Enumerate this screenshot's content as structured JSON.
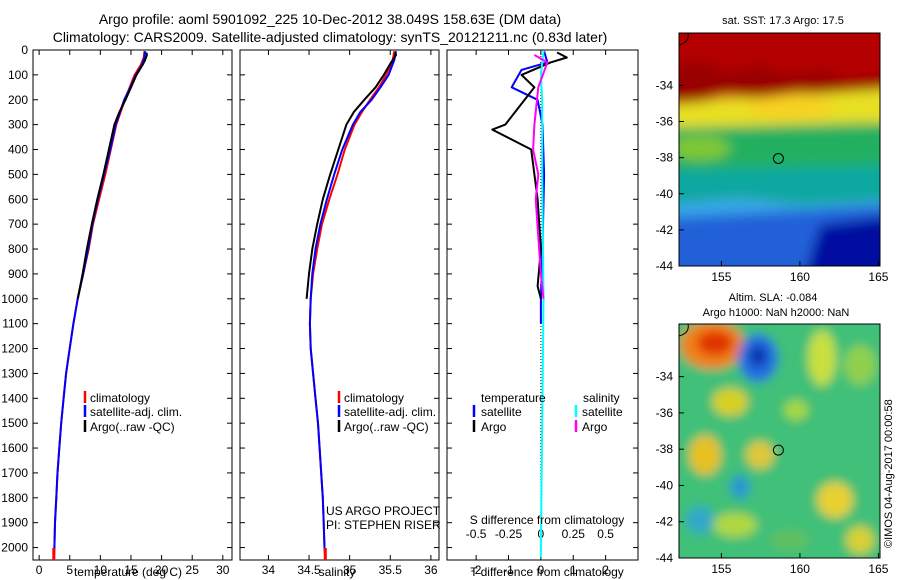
{
  "titles": {
    "line1": "Argo profile: aoml 5901092_225 10-Dec-2012 38.049S 158.63E (DM data)",
    "line2": "Climatology: CARS2009. Satellite-adjusted climatology: synTS_20121211.nc (0.83d later)"
  },
  "colors": {
    "climatology": "#ff0000",
    "satellite": "#0000ff",
    "argo": "#000000",
    "salinity_satellite": "#00ffff",
    "salinity_argo": "#ff00ff"
  },
  "credit": {
    "project": "US ARGO PROJECT",
    "pi": "PI: STEPHEN RISER"
  },
  "watermark": "©IMOS 04-Aug-2017 00:00:58",
  "chart_data": [
    {
      "type": "line",
      "id": "temperature",
      "xlabel": "temperature (deg C)",
      "ylabel": "",
      "xlim": [
        -1,
        31.5
      ],
      "ylim": [
        2050,
        0
      ],
      "xticks": [
        0,
        5,
        10,
        15,
        20,
        25,
        30
      ],
      "yticks": [
        0,
        100,
        200,
        300,
        400,
        500,
        600,
        700,
        800,
        900,
        1000,
        1100,
        1200,
        1300,
        1400,
        1500,
        1600,
        1700,
        1800,
        1900,
        2000
      ],
      "legend": [
        "climatology",
        "satellite-adj. clim.",
        "Argo(..raw -QC)"
      ],
      "series": [
        {
          "name": "climatology",
          "color": "#ff0000",
          "points": [
            [
              17.2,
              5
            ],
            [
              17.1,
              30
            ],
            [
              16.6,
              60
            ],
            [
              15.6,
              100
            ],
            [
              14.8,
              150
            ],
            [
              14.0,
              200
            ],
            [
              13.3,
              250
            ],
            [
              12.6,
              300
            ],
            [
              11.7,
              400
            ],
            [
              10.8,
              500
            ],
            [
              9.8,
              600
            ],
            [
              8.8,
              700
            ],
            [
              8.1,
              800
            ],
            [
              7.2,
              900
            ],
            [
              6.3,
              1000
            ],
            [
              5.6,
              1100
            ],
            [
              5.0,
              1200
            ],
            [
              4.4,
              1300
            ],
            [
              4.0,
              1400
            ],
            [
              3.6,
              1500
            ],
            [
              3.3,
              1600
            ],
            [
              3.0,
              1700
            ],
            [
              2.8,
              1800
            ],
            [
              2.6,
              1900
            ],
            [
              2.5,
              2000
            ],
            [
              2.4,
              2050
            ]
          ]
        },
        {
          "name": "satellite-adj. clim.",
          "color": "#0000ff",
          "points": [
            [
              17.3,
              5
            ],
            [
              17.2,
              30
            ],
            [
              16.8,
              60
            ],
            [
              15.8,
              100
            ],
            [
              14.9,
              150
            ],
            [
              13.9,
              200
            ],
            [
              13.2,
              250
            ],
            [
              12.5,
              300
            ],
            [
              11.6,
              400
            ],
            [
              10.6,
              500
            ],
            [
              9.6,
              600
            ],
            [
              8.7,
              700
            ],
            [
              8.0,
              800
            ],
            [
              7.2,
              900
            ],
            [
              6.3,
              1000
            ],
            [
              5.6,
              1100
            ],
            [
              5.0,
              1200
            ],
            [
              4.4,
              1300
            ],
            [
              4.0,
              1400
            ],
            [
              3.6,
              1500
            ],
            [
              3.3,
              1600
            ],
            [
              3.0,
              1700
            ],
            [
              2.8,
              1800
            ],
            [
              2.6,
              1900
            ],
            [
              2.5,
              2000
            ],
            [
              2.4,
              2040
            ]
          ]
        },
        {
          "name": "Argo(..raw -QC)",
          "color": "#000000",
          "points": [
            [
              17.5,
              10
            ],
            [
              17.6,
              20
            ],
            [
              17.3,
              40
            ],
            [
              16.9,
              60
            ],
            [
              15.9,
              100
            ],
            [
              15.0,
              150
            ],
            [
              14.1,
              200
            ],
            [
              13.1,
              250
            ],
            [
              12.3,
              300
            ],
            [
              11.4,
              400
            ],
            [
              10.5,
              500
            ],
            [
              9.5,
              600
            ],
            [
              8.6,
              700
            ],
            [
              7.8,
              800
            ],
            [
              7.1,
              900
            ],
            [
              6.3,
              1000
            ]
          ]
        }
      ]
    },
    {
      "type": "line",
      "id": "salinity",
      "xlabel": "salinity",
      "ylabel": "",
      "xlim": [
        33.65,
        36.1
      ],
      "ylim": [
        2050,
        0
      ],
      "xticks": [
        34,
        34.5,
        35,
        35.5,
        36
      ],
      "legend": [
        "climatology",
        "satellite-adj. clim.",
        "Argo(..raw -QC)"
      ],
      "series": [
        {
          "name": "climatology",
          "color": "#ff0000",
          "points": [
            [
              35.55,
              5
            ],
            [
              35.53,
              40
            ],
            [
              35.45,
              100
            ],
            [
              35.36,
              150
            ],
            [
              35.25,
              200
            ],
            [
              35.15,
              250
            ],
            [
              35.06,
              300
            ],
            [
              34.94,
              400
            ],
            [
              34.85,
              500
            ],
            [
              34.75,
              600
            ],
            [
              34.66,
              700
            ],
            [
              34.6,
              800
            ],
            [
              34.55,
              900
            ],
            [
              34.52,
              1000
            ],
            [
              34.51,
              1100
            ],
            [
              34.52,
              1200
            ],
            [
              34.55,
              1300
            ],
            [
              34.58,
              1400
            ],
            [
              34.61,
              1500
            ],
            [
              34.63,
              1600
            ],
            [
              34.65,
              1700
            ],
            [
              34.67,
              1800
            ],
            [
              34.68,
              1900
            ],
            [
              34.69,
              2000
            ],
            [
              34.7,
              2050
            ]
          ]
        },
        {
          "name": "satellite-adj. clim.",
          "color": "#0000ff",
          "points": [
            [
              35.57,
              5
            ],
            [
              35.55,
              40
            ],
            [
              35.48,
              100
            ],
            [
              35.38,
              150
            ],
            [
              35.27,
              200
            ],
            [
              35.13,
              250
            ],
            [
              35.04,
              300
            ],
            [
              34.91,
              400
            ],
            [
              34.81,
              500
            ],
            [
              34.72,
              600
            ],
            [
              34.64,
              700
            ],
            [
              34.58,
              800
            ],
            [
              34.54,
              900
            ],
            [
              34.52,
              1000
            ],
            [
              34.51,
              1100
            ],
            [
              34.52,
              1200
            ],
            [
              34.55,
              1300
            ],
            [
              34.58,
              1400
            ],
            [
              34.61,
              1500
            ],
            [
              34.63,
              1600
            ],
            [
              34.65,
              1700
            ],
            [
              34.67,
              1800
            ],
            [
              34.68,
              1900
            ],
            [
              34.69,
              2000
            ],
            [
              34.7,
              2040
            ]
          ]
        },
        {
          "name": "Argo(..raw -QC)",
          "color": "#000000",
          "points": [
            [
              35.56,
              10
            ],
            [
              35.57,
              20
            ],
            [
              35.51,
              50
            ],
            [
              35.42,
              100
            ],
            [
              35.32,
              150
            ],
            [
              35.18,
              200
            ],
            [
              35.05,
              250
            ],
            [
              34.96,
              300
            ],
            [
              34.86,
              400
            ],
            [
              34.76,
              500
            ],
            [
              34.67,
              600
            ],
            [
              34.6,
              700
            ],
            [
              34.54,
              800
            ],
            [
              34.5,
              900
            ],
            [
              34.47,
              1000
            ]
          ]
        }
      ]
    },
    {
      "type": "line",
      "id": "differences",
      "xlabel": "T difference from climatology",
      "xlabel_top": "S difference from climatology",
      "xlim": [
        -2.9,
        3.0
      ],
      "ylim": [
        2050,
        0
      ],
      "xticks": [
        -2,
        -1,
        0,
        1,
        2
      ],
      "xticks_top": [
        "-0.5",
        "-0.25",
        "0",
        "0.25",
        "0.5"
      ],
      "legend": {
        "temperature_title": "temperature",
        "salinity_title": "salinity",
        "entries": [
          "satellite",
          "Argo",
          "satellite",
          "Argo"
        ]
      },
      "series": [
        {
          "name": "satellite",
          "quantity": "temperature",
          "color": "#0000ff",
          "points": [
            [
              0.1,
              5
            ],
            [
              0.2,
              50
            ],
            [
              -0.6,
              80
            ],
            [
              -0.9,
              150
            ],
            [
              -0.1,
              200
            ],
            [
              0.05,
              300
            ],
            [
              0.1,
              500
            ],
            [
              0.05,
              800
            ],
            [
              0.0,
              1000
            ],
            [
              0.0,
              1100
            ]
          ]
        },
        {
          "name": "Argo",
          "quantity": "temperature",
          "color": "#000000",
          "points": [
            [
              0.5,
              10
            ],
            [
              0.8,
              30
            ],
            [
              0.3,
              50
            ],
            [
              -0.6,
              100
            ],
            [
              -0.2,
              150
            ],
            [
              -1.1,
              300
            ],
            [
              -1.5,
              320
            ],
            [
              -0.3,
              400
            ],
            [
              -0.1,
              600
            ],
            [
              0.0,
              800
            ],
            [
              -0.1,
              950
            ],
            [
              0.0,
              1000
            ]
          ]
        },
        {
          "name": "satellite",
          "quantity": "salinity",
          "color": "#00ffff",
          "points": [
            [
              0.02,
              5
            ],
            [
              0.0,
              100
            ],
            [
              0.01,
              200
            ],
            [
              0.01,
              500
            ],
            [
              0.02,
              1000
            ],
            [
              0.01,
              1500
            ],
            [
              0.0,
              2000
            ],
            [
              0.0,
              2040
            ]
          ]
        },
        {
          "name": "Argo",
          "quantity": "salinity",
          "color": "#ff00ff",
          "points": [
            [
              -0.05,
              20
            ],
            [
              0.05,
              50
            ],
            [
              -0.02,
              150
            ],
            [
              -0.05,
              300
            ],
            [
              -0.06,
              400
            ],
            [
              -0.02,
              500
            ],
            [
              -0.04,
              600
            ],
            [
              0.0,
              900
            ],
            [
              0.02,
              1000
            ]
          ]
        }
      ]
    },
    {
      "type": "heatmap",
      "id": "sst-map",
      "title": "sat. SST: 17.3 Argo: 17.5",
      "xlim": [
        152.3,
        165.1
      ],
      "ylim": [
        -44,
        -31.1
      ],
      "xticks": [
        155,
        160,
        165
      ],
      "yticks": [
        -34,
        -36,
        -38,
        -40,
        -42,
        -44
      ],
      "marker": {
        "lon": 158.63,
        "lat": -38.049
      }
    },
    {
      "type": "heatmap",
      "id": "sla-map",
      "title": "Altim. SLA: -0.084",
      "subtitle": "Argo h1000: NaN h2000: NaN",
      "xlim": [
        152.3,
        165.1
      ],
      "ylim": [
        -44,
        -31.1
      ],
      "xticks": [
        155,
        160,
        165
      ],
      "yticks": [
        -34,
        -36,
        -38,
        -40,
        -42,
        -44
      ],
      "marker": {
        "lon": 158.63,
        "lat": -38.049
      }
    }
  ]
}
